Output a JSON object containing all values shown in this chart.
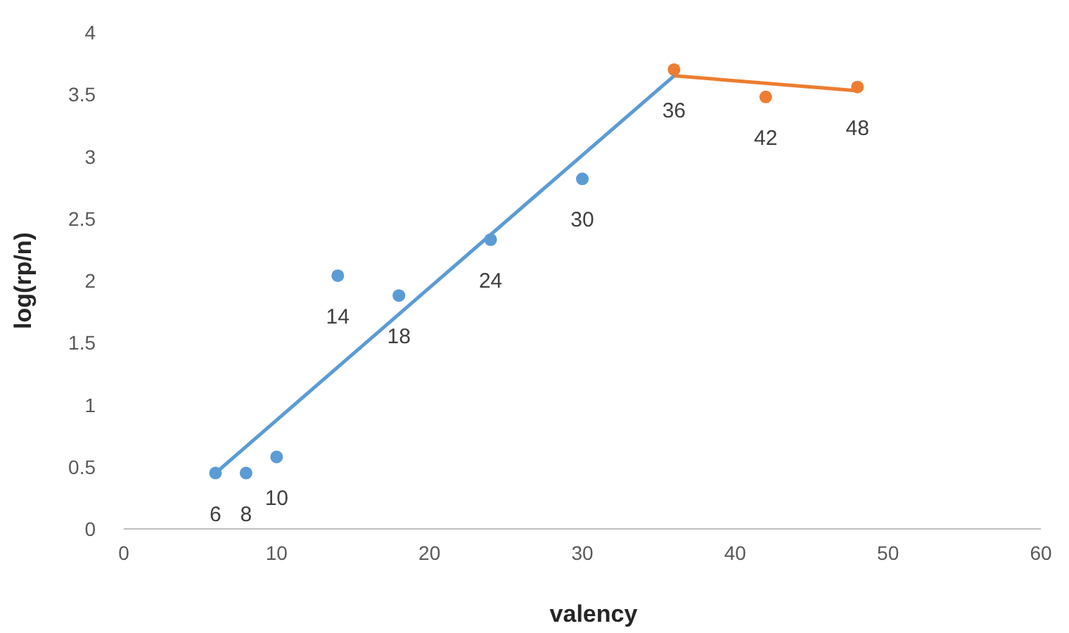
{
  "chart_data": {
    "type": "scatter",
    "xlabel": "valency",
    "ylabel": "log(rp/n)",
    "xlim": [
      0,
      60
    ],
    "xticks": [
      0,
      10,
      20,
      30,
      40,
      50,
      60
    ],
    "ylim": [
      0,
      4
    ],
    "yticks": [
      0,
      0.5,
      1,
      1.5,
      2,
      2.5,
      3,
      3.5,
      4
    ],
    "grid": false,
    "marker": "circle",
    "series": [
      {
        "color": "#5b9bd5",
        "x": [
          6,
          8,
          10,
          14,
          18,
          24,
          30
        ],
        "values": [
          0.45,
          0.45,
          0.58,
          2.04,
          1.88,
          2.33,
          2.82
        ]
      },
      {
        "color": "#ed7d31",
        "x": [
          36,
          42,
          48
        ],
        "values": [
          3.7,
          3.48,
          3.56
        ]
      },
      {
        "type": "line",
        "color": "#5b9bd5",
        "x": [
          6,
          36
        ],
        "values": [
          0.45,
          3.65
        ],
        "marker": "none"
      },
      {
        "type": "line",
        "color": "#ed7d31",
        "x": [
          36,
          48
        ],
        "values": [
          3.65,
          3.53
        ],
        "marker": "none"
      }
    ],
    "annotations": [
      {
        "text": "6",
        "x": 6,
        "y": 0.45
      },
      {
        "text": "8",
        "x": 8,
        "y": 0.45
      },
      {
        "text": "10",
        "x": 10,
        "y": 0.58
      },
      {
        "text": "14",
        "x": 14,
        "y": 2.04
      },
      {
        "text": "18",
        "x": 18,
        "y": 1.88
      },
      {
        "text": "24",
        "x": 24,
        "y": 2.33
      },
      {
        "text": "30",
        "x": 30,
        "y": 2.82
      },
      {
        "text": "36",
        "x": 36,
        "y": 3.7
      },
      {
        "text": "42",
        "x": 42,
        "y": 3.48
      },
      {
        "text": "48",
        "x": 48,
        "y": 3.56
      }
    ]
  }
}
